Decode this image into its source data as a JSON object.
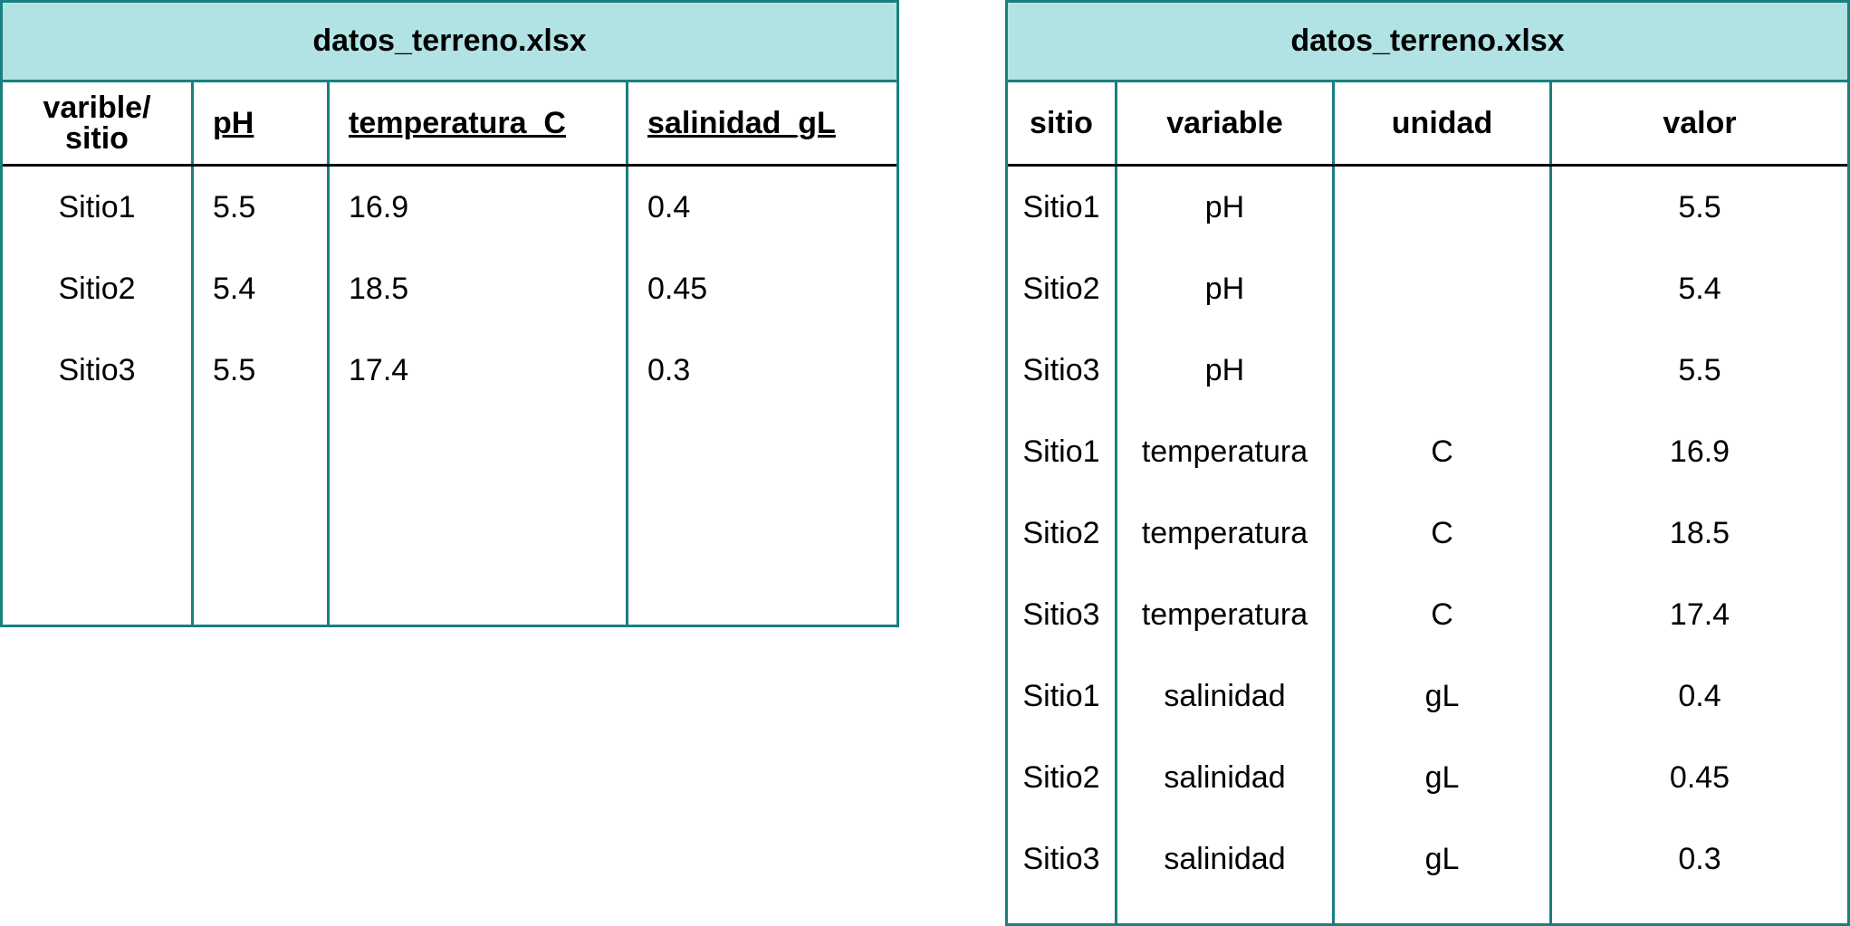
{
  "wide_table": {
    "title": "datos_terreno.xlsx",
    "headers": [
      "varible/\nsitio",
      "pH",
      "temperatura_C",
      "salinidad_gL"
    ],
    "rows": [
      [
        "Sitio1",
        "5.5",
        "16.9",
        "0.4"
      ],
      [
        "Sitio2",
        "5.4",
        "18.5",
        "0.45"
      ],
      [
        "Sitio3",
        "5.5",
        "17.4",
        "0.3"
      ]
    ]
  },
  "long_table": {
    "title": "datos_terreno.xlsx",
    "headers": [
      "sitio",
      "variable",
      "unidad",
      "valor"
    ],
    "rows": [
      [
        "Sitio1",
        "pH",
        "",
        "5.5"
      ],
      [
        "Sitio2",
        "pH",
        "",
        "5.4"
      ],
      [
        "Sitio3",
        "pH",
        "",
        "5.5"
      ],
      [
        "Sitio1",
        "temperatura",
        "C",
        "16.9"
      ],
      [
        "Sitio2",
        "temperatura",
        "C",
        "18.5"
      ],
      [
        "Sitio3",
        "temperatura",
        "C",
        "17.4"
      ],
      [
        "Sitio1",
        "salinidad",
        "gL",
        "0.4"
      ],
      [
        "Sitio2",
        "salinidad",
        "gL",
        "0.45"
      ],
      [
        "Sitio3",
        "salinidad",
        "gL",
        "0.3"
      ]
    ]
  },
  "colors": {
    "border": "#1a7f80",
    "title_fill": "#b1e3e5"
  }
}
